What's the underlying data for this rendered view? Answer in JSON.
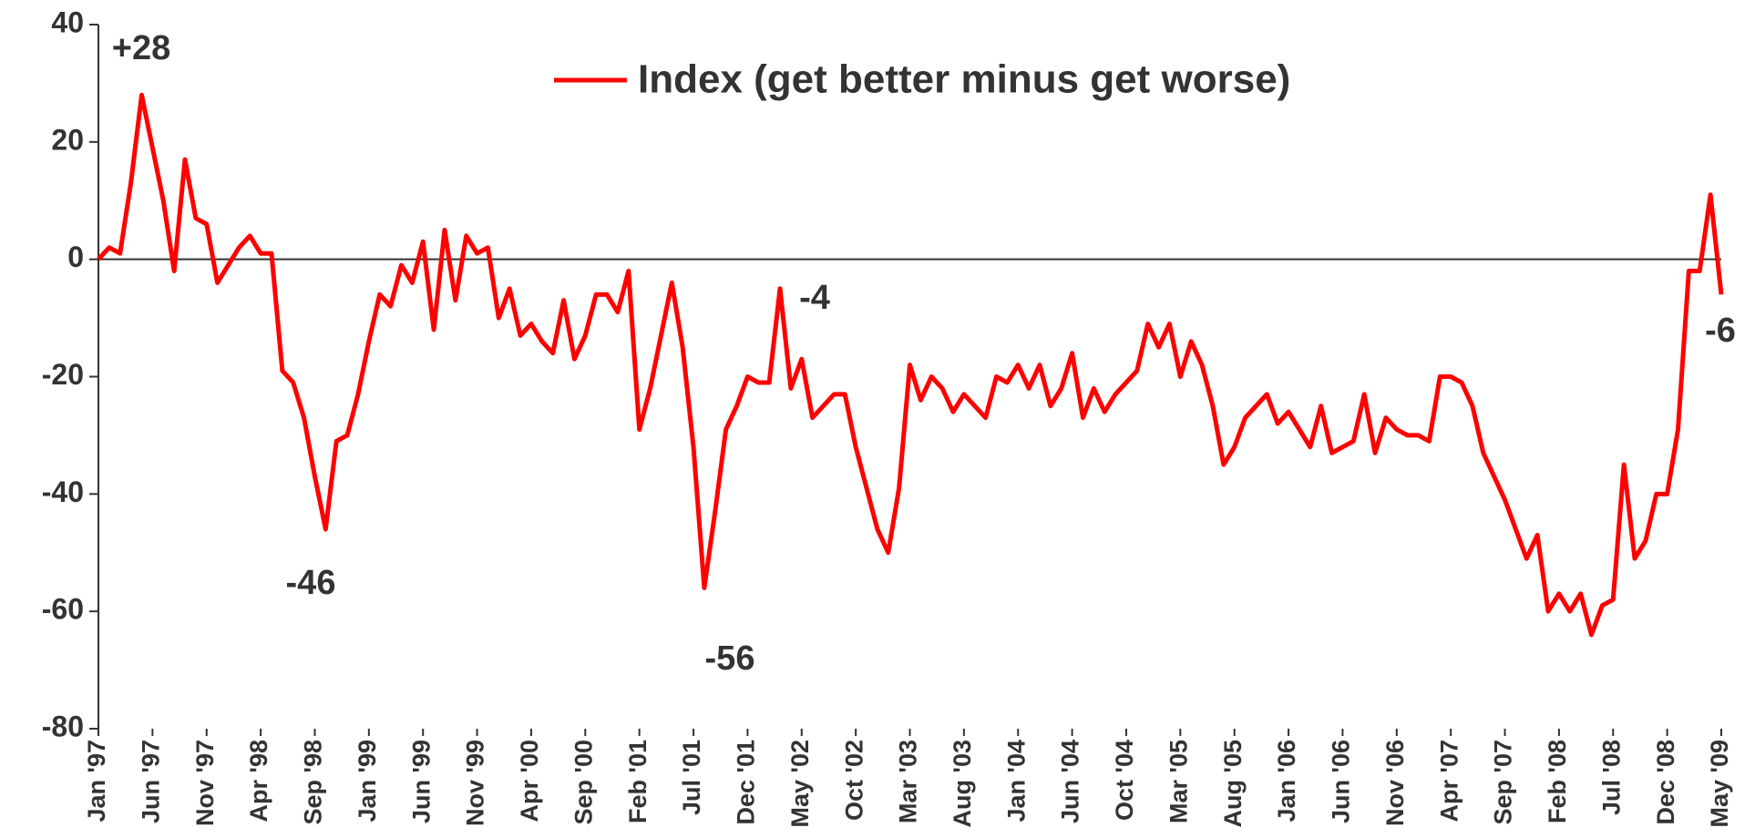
{
  "chart_data": {
    "type": "line",
    "categories": [
      "Jan '97",
      null,
      null,
      null,
      null,
      "Jun '97",
      null,
      null,
      null,
      null,
      "Nov '97",
      null,
      null,
      null,
      null,
      "Apr '98",
      null,
      null,
      null,
      null,
      "Sep '98",
      null,
      null,
      null,
      null,
      "Jan '99",
      null,
      null,
      null,
      null,
      "Jun '99",
      null,
      null,
      null,
      null,
      "Nov '99",
      null,
      null,
      null,
      null,
      "Apr '00",
      null,
      null,
      null,
      null,
      "Sep '00",
      null,
      null,
      null,
      null,
      "Feb '01",
      null,
      null,
      null,
      null,
      "Jul '01",
      null,
      null,
      null,
      null,
      "Dec '01",
      null,
      null,
      null,
      null,
      "May '02",
      null,
      null,
      null,
      null,
      "Oct '02",
      null,
      null,
      null,
      null,
      "Mar '03",
      null,
      null,
      null,
      null,
      "Aug '03",
      null,
      null,
      null,
      null,
      "Jan '04",
      null,
      null,
      null,
      null,
      "Jun '04",
      null,
      null,
      null,
      null,
      "Oct '04",
      null,
      null,
      null,
      null,
      "Mar '05",
      null,
      null,
      null,
      null,
      "Aug '05",
      null,
      null,
      null,
      null,
      "Jan '06",
      null,
      null,
      null,
      null,
      "Jun '06",
      null,
      null,
      null,
      null,
      "Nov '06",
      null,
      null,
      null,
      null,
      "Apr '07",
      null,
      null,
      null,
      null,
      "Sep '07",
      null,
      null,
      null,
      null,
      "Feb '08",
      null,
      null,
      null,
      null,
      "Jul '08",
      null,
      null,
      null,
      null,
      "Dec '08",
      null,
      null,
      null,
      null,
      "May '09"
    ],
    "series": [
      {
        "name": "Index (get better minus get worse)",
        "color": "#ff0000",
        "values": [
          0,
          2,
          1,
          13,
          28,
          19,
          10,
          -2,
          17,
          7,
          6,
          -4,
          -1,
          2,
          4,
          1,
          1,
          -19,
          -21,
          -27,
          -37,
          -46,
          -31,
          -30,
          -23,
          -14,
          -6,
          -8,
          -1,
          -4,
          3,
          -12,
          5,
          -7,
          4,
          1,
          2,
          -10,
          -5,
          -13,
          -11,
          -14,
          -16,
          -7,
          -17,
          -13,
          -6,
          -6,
          -9,
          -2,
          -29,
          -22,
          -13,
          -4,
          -15,
          -32,
          -56,
          -43,
          -29,
          -25,
          -20,
          -21,
          -21,
          -5,
          -22,
          -17,
          -27,
          -25,
          -23,
          -23,
          -32,
          -39,
          -46,
          -50,
          -39,
          -18,
          -24,
          -20,
          -22,
          -26,
          -23,
          -25,
          -27,
          -20,
          -21,
          -18,
          -22,
          -18,
          -25,
          -22,
          -16,
          -27,
          -22,
          -26,
          -23,
          -21,
          -19,
          -11,
          -15,
          -11,
          -20,
          -14,
          -18,
          -25,
          -35,
          -32,
          -27,
          -25,
          -23,
          -28,
          -26,
          -29,
          -32,
          -25,
          -33,
          -32,
          -31,
          -23,
          -33,
          -27,
          -29,
          -30,
          -30,
          -31,
          -20,
          -20,
          -21,
          -25,
          -33,
          -37,
          -41,
          -46,
          -51,
          -47,
          -60,
          -57,
          -60,
          -57,
          -64,
          -59,
          -58,
          -35,
          -51,
          -48,
          -40,
          -40,
          -29,
          -2,
          -2,
          11,
          -6
        ]
      }
    ],
    "annotations": [
      "+28",
      "-46",
      "-56",
      "-4",
      "-6"
    ],
    "ylim": [
      -80,
      40
    ],
    "yticks": [
      40,
      20,
      0,
      -20,
      -40,
      -60,
      -80
    ],
    "legend": "top"
  }
}
